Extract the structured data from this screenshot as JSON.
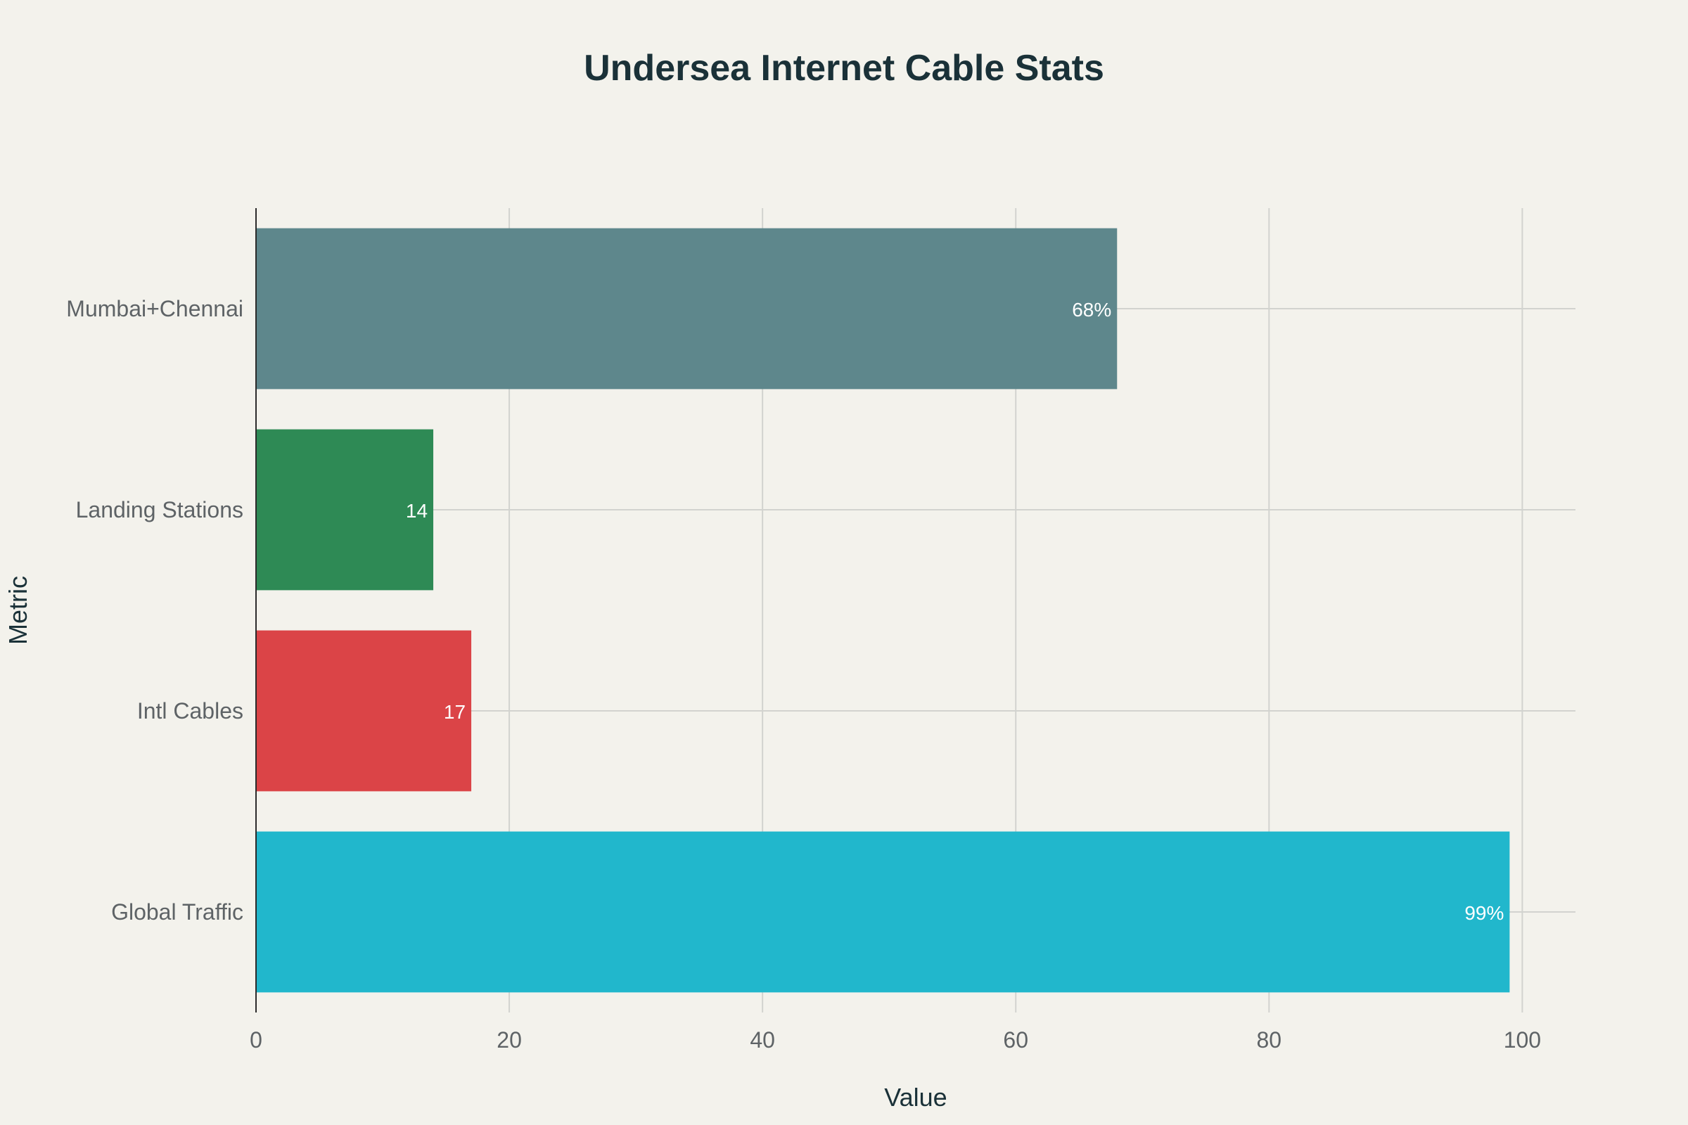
{
  "chart_data": {
    "type": "bar",
    "orientation": "horizontal",
    "title": "Undersea Internet Cable Stats",
    "xlabel": "Value",
    "ylabel": "Metric",
    "xlim": [
      0,
      104.2
    ],
    "x_ticks": [
      0,
      20,
      40,
      60,
      80,
      100
    ],
    "grid": true,
    "legend": "none",
    "categories": [
      "Mumbai+Chennai",
      "Landing Stations",
      "Intl Cables",
      "Global Traffic"
    ],
    "values": [
      68,
      14,
      17,
      99
    ],
    "data_labels": [
      "68%",
      "14",
      "17",
      "99%"
    ],
    "colors": [
      "#5e878c",
      "#2e8a55",
      "#db4447",
      "#21b7cc"
    ]
  },
  "colors": {
    "background": "#f3f2ec",
    "title": "#1a3138",
    "tick_text": "#5e6366",
    "grid": "#d2d3cf",
    "axis_line": "#2b2b2b"
  }
}
